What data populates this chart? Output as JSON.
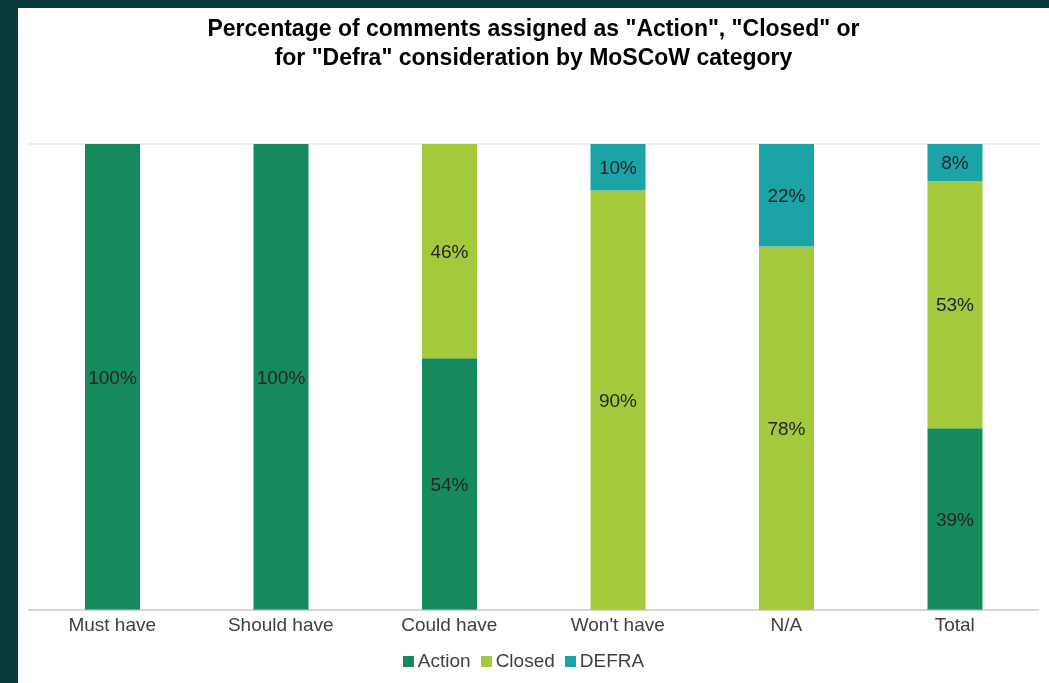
{
  "chart_data": {
    "type": "bar",
    "title": "Percentage of comments assigned as \"Action\", \"Closed\" or for \"Defra\" consideration by MoSCoW category",
    "categories": [
      "Must have",
      "Should have",
      "Could have",
      "Won't have",
      "N/A",
      "Total"
    ],
    "series": [
      {
        "name": "Action",
        "color": "#168a5c",
        "values": [
          100,
          100,
          54,
          0,
          0,
          39
        ],
        "value_labels": [
          "100%",
          "100%",
          "54%",
          null,
          null,
          "39%"
        ]
      },
      {
        "name": "Closed",
        "color": "#a4c93c",
        "values": [
          0,
          0,
          46,
          90,
          78,
          53
        ],
        "value_labels": [
          null,
          null,
          "46%",
          "90%",
          "78%",
          "53%"
        ]
      },
      {
        "name": "DEFRA",
        "color": "#1ba3a6",
        "values": [
          0,
          0,
          0,
          10,
          22,
          8
        ],
        "value_labels": [
          null,
          null,
          null,
          "10%",
          "22%",
          "8%"
        ]
      }
    ],
    "stacked": true,
    "ylim": [
      0,
      100
    ],
    "tick_labels": "x",
    "grid": "y",
    "legend": "bottom"
  }
}
